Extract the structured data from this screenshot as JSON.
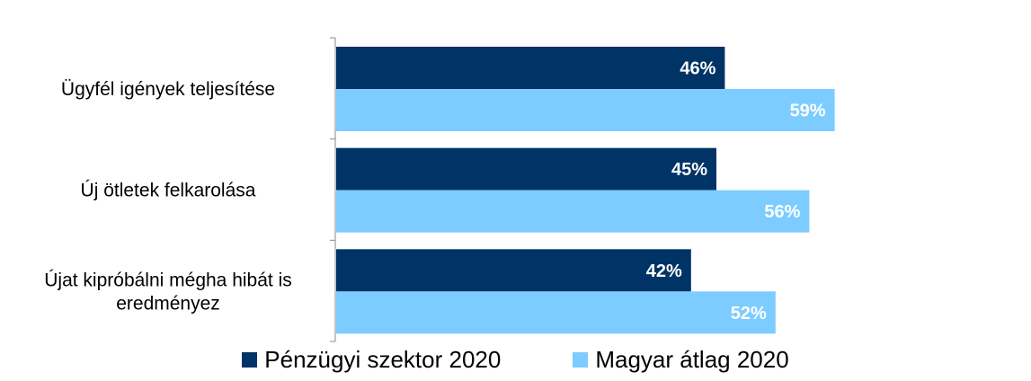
{
  "chart_data": {
    "type": "bar",
    "orientation": "horizontal",
    "categories": [
      "Ügyfél igények teljesítése",
      "Új ötletek felkarolása",
      "Újat kipróbálni mégha hibát is eredményez"
    ],
    "category_lines": [
      [
        "Ügyfél igények teljesítése"
      ],
      [
        "Új ötletek felkarolása"
      ],
      [
        "Újat kipróbálni mégha hibát is",
        "eredményez"
      ]
    ],
    "series": [
      {
        "name": "Pénzügyi szektor 2020",
        "values": [
          46,
          45,
          42
        ],
        "labels": [
          "46%",
          "45%",
          "42%"
        ],
        "color": "#003366"
      },
      {
        "name": "Magyar átlag 2020",
        "values": [
          59,
          56,
          52
        ],
        "labels": [
          "59%",
          "56%",
          "52%"
        ],
        "color": "#7DCCFF"
      }
    ],
    "xlim": [
      0,
      80
    ],
    "grid": false,
    "legend_position": "bottom"
  }
}
